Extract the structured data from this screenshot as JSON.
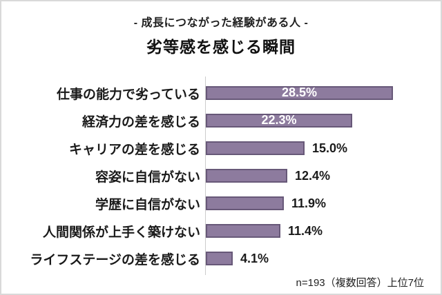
{
  "frame": {
    "background": "#ffffff",
    "border_color": "#d9d9d9"
  },
  "header": {
    "subtitle": "- 成長につながった経験がある人 -",
    "title": "劣等感を感じる瞬間"
  },
  "chart_data": {
    "type": "bar",
    "orientation": "horizontal",
    "title": "劣等感を感じる瞬間",
    "subtitle": "- 成長につながった経験がある人 -",
    "categories": [
      "仕事の能力で劣っている",
      "経済力の差を感じる",
      "キャリアの差を感じる",
      "容姿に自信がない",
      "学歴に自信がない",
      "人間関係が上手く築けない",
      "ライフステージの差を感じる"
    ],
    "values": [
      28.5,
      22.3,
      15.0,
      12.4,
      11.9,
      11.4,
      4.1
    ],
    "value_labels": [
      "28.5%",
      "22.3%",
      "15.0%",
      "12.4%",
      "11.9%",
      "11.4%",
      "4.1%"
    ],
    "label_placement": [
      "inside",
      "inside",
      "outside",
      "outside",
      "outside",
      "outside",
      "outside"
    ],
    "xlim": [
      0,
      30
    ],
    "grid": false,
    "legend": false,
    "colors": {
      "bar_fill": "#8d7b9e",
      "bar_border": "#675878",
      "inside_label": "#ffffff",
      "outside_label": "#1a1a1a",
      "axis_line": "#cccccc"
    }
  },
  "footer": {
    "note": "n=193（複数回答）上位7位"
  }
}
